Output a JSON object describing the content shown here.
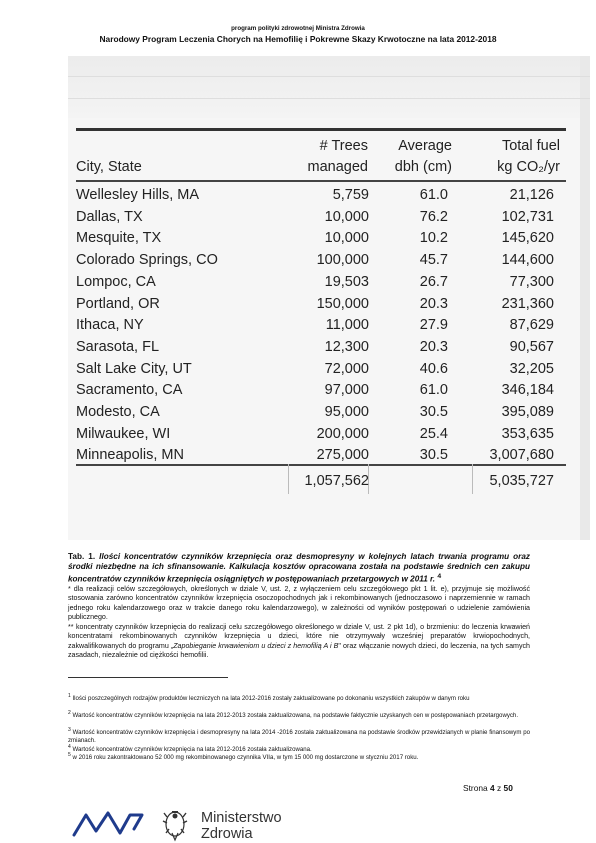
{
  "header": {
    "line1": "program polityki zdrowotnej Ministra Zdrowia",
    "line2": "Narodowy Program Leczenia Chorych na Hemofilię i Pokrewne Skazy Krwotoczne na lata 2012-2018"
  },
  "scan_table": {
    "headers": {
      "city": "City, State",
      "trees_1": "# Trees",
      "trees_2": "managed",
      "dbh_1": "Average",
      "dbh_2": "dbh (cm)",
      "fuel_1": "Total fuel",
      "fuel_2": "kg CO₂/yr"
    },
    "rows": [
      {
        "city": "Wellesley Hills, MA",
        "trees": "5,759",
        "dbh": "61.0",
        "fuel": "21,126"
      },
      {
        "city": "Dallas, TX",
        "trees": "10,000",
        "dbh": "76.2",
        "fuel": "102,731"
      },
      {
        "city": "Mesquite, TX",
        "trees": "10,000",
        "dbh": "10.2",
        "fuel": "145,620"
      },
      {
        "city": "Colorado Springs, CO",
        "trees": "100,000",
        "dbh": "45.7",
        "fuel": "144,600"
      },
      {
        "city": "Lompoc, CA",
        "trees": "19,503",
        "dbh": "26.7",
        "fuel": "77,300"
      },
      {
        "city": "Portland, OR",
        "trees": "150,000",
        "dbh": "20.3",
        "fuel": "231,360"
      },
      {
        "city": "Ithaca, NY",
        "trees": "11,000",
        "dbh": "27.9",
        "fuel": "87,629"
      },
      {
        "city": "Sarasota, FL",
        "trees": "12,300",
        "dbh": "20.3",
        "fuel": "90,567"
      },
      {
        "city": "Salt Lake City, UT",
        "trees": "72,000",
        "dbh": "40.6",
        "fuel": "32,205"
      },
      {
        "city": "Sacramento, CA",
        "trees": "97,000",
        "dbh": "61.0",
        "fuel": "346,184"
      },
      {
        "city": "Modesto, CA",
        "trees": "95,000",
        "dbh": "30.5",
        "fuel": "395,089"
      },
      {
        "city": "Milwaukee, WI",
        "trees": "200,000",
        "dbh": "25.4",
        "fuel": "353,635"
      },
      {
        "city": "Minneapolis, MN",
        "trees": "275,000",
        "dbh": "30.5",
        "fuel": "3,007,680"
      }
    ],
    "totals": {
      "trees": "1,057,562",
      "fuel": "5,035,727"
    }
  },
  "caption": {
    "label": "Tab. 1.",
    "text": "Ilości koncentratów czynników krzepnięcia oraz desmopresyny w kolejnych latach trwania programu oraz środki niezbędne na ich sfinansowanie. Kalkulacja kosztów opracowana została na podstawie średnich cen zakupu koncentratów czynników krzepnięcia osiągniętych w postępowaniach przetargowych w 2011 r.",
    "ref": "4"
  },
  "notes": {
    "star1": "* dla realizacji celów szczegółowych, określonych w dziale V, ust. 2, z wyłączeniem celu szczegółowego pkt 1 lit. e), przyjmuje się możliwość stosowania zarówno koncentratów czynników krzepnięcia osoczopochodnych jak i rekombinowanych (jednoczasowo i naprzemiennie w ramach jednego roku kalendarzowego oraz w trakcie danego roku kalendarzowego), w zależności od wyników postępowań o udzielenie zamówienia publicznego.",
    "star2_a": "** koncentraty czynników krzepnięcia do realizacji celu szczegółowego określonego w dziale V, ust. 2 pkt 1d), o brzmieniu: do leczenia krwawień koncentratami rekombinowanych czynników krzepnięcia u dzieci, które nie otrzymywały wcześniej preparatów krwiopochodnych, zakwalifikowanych do programu „",
    "star2_italic": "Zapobieganie krwawieniom u dzieci z hemofilią A i B",
    "star2_b": "\" oraz włączanie nowych dzieci, do leczenia, na tych samych zasadach, niezależnie od ciężkości hemofilii."
  },
  "footnotes": [
    {
      "num": "1",
      "text": "Ilości poszczególnych rodzajów produktów leczniczych na lata 2012-2016 zostały zaktualizowane po dokonaniu wszystkich zakupów w danym roku"
    },
    {
      "num": "2",
      "text": "Wartość koncentratów czynników krzepnięcia na lata 2012-2013  została zaktualizowana, na podstawie faktycznie uzyskanych cen w postępowaniach przetargowych."
    },
    {
      "num": "3",
      "text": "Wartość koncentratów czynników krzepnięcia i desmopresyny na lata 2014 -2016 została zaktualizowana na podstawie środków przewidzianych w planie finansowym po zmianach."
    },
    {
      "num": "4",
      "text": "Wartość koncentratów czynników krzepnięcia na lata 2012-2016 została zaktualizowana."
    },
    {
      "num": "5",
      "text": "w 2016 roku zakontraktowano 52 000 mg rekombinowanego czynnika VIIa, w tym 15 000 mg dostarczone w styczniu 2017 roku."
    }
  ],
  "page": {
    "label": "Strona",
    "current": "4",
    "sep": "z",
    "total": "50"
  },
  "logo": {
    "line1": "Ministerstwo",
    "line2": "Zdrowia",
    "icon": "ministry-logo-icon",
    "color": "#1f3b8c"
  }
}
